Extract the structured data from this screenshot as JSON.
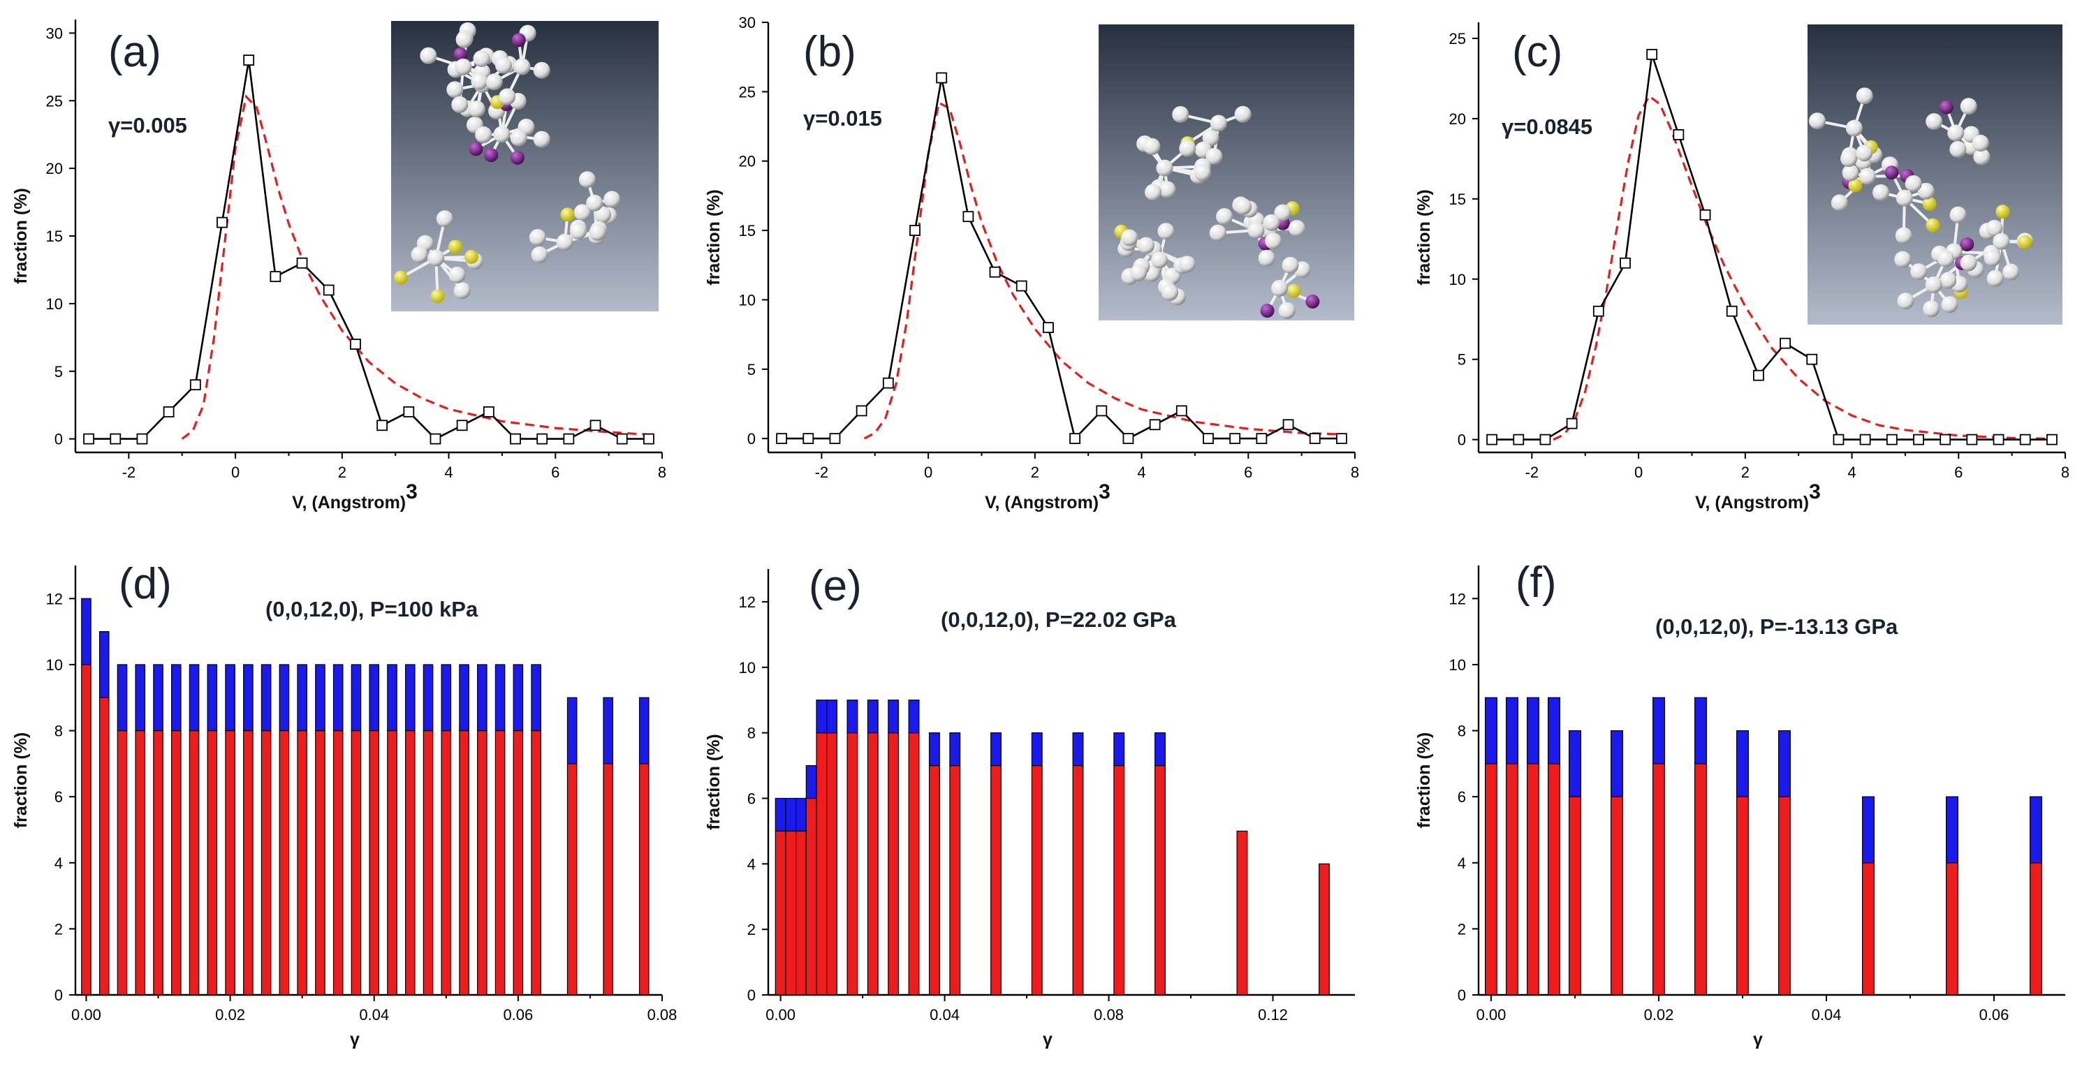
{
  "figure": {
    "panels": [
      {
        "label": "(a)",
        "annotation": "γ=0.005"
      },
      {
        "label": "(b)",
        "annotation": "γ=0.015"
      },
      {
        "label": "(c)",
        "annotation": "γ=0.0845"
      },
      {
        "label": "(d)",
        "annotation": "(0,0,12,0),  P=100 kPa"
      },
      {
        "label": "(e)",
        "annotation": "(0,0,12,0),  P=22.02 GPa"
      },
      {
        "label": "(f)",
        "annotation": "(0,0,12,0),  P=-13.13 GPa"
      }
    ],
    "colors": {
      "data_line": "#000000",
      "fit_line": "#e0201c",
      "bar_red": "#ee1c1c",
      "bar_blue": "#1a1aee",
      "inset_top": "#2a3446",
      "inset_bottom": "#aeb6c6",
      "atom_white": "#f2f2f2",
      "atom_purple": "#7a1f8c",
      "atom_yellow": "#e8e020"
    }
  },
  "chart_data": [
    {
      "type": "line",
      "id": "a",
      "title": "(a)",
      "annotation": "γ=0.005",
      "xlabel": "V,  (Angstrom)",
      "xlabel_sup": "3",
      "ylabel": "fraction (%)",
      "xlim": [
        -3,
        8
      ],
      "ylim": [
        -1,
        31
      ],
      "xticks": [
        -2,
        0,
        2,
        4,
        6,
        8
      ],
      "yticks": [
        0,
        5,
        10,
        15,
        20,
        25,
        30
      ],
      "series": [
        {
          "name": "data",
          "style": "line-markers",
          "x": [
            -2.75,
            -2.25,
            -1.75,
            -1.25,
            -0.75,
            -0.25,
            0.25,
            0.75,
            1.25,
            1.75,
            2.25,
            2.75,
            3.25,
            3.75,
            4.25,
            4.75,
            5.25,
            5.75,
            6.25,
            6.75,
            7.25,
            7.75
          ],
          "y": [
            0,
            0,
            0,
            2,
            4,
            16,
            28,
            12,
            13,
            11,
            7,
            1,
            2,
            0,
            1,
            2,
            0,
            0,
            0,
            1,
            0,
            0
          ]
        },
        {
          "name": "fit",
          "style": "dashed",
          "x": [
            -1.0,
            -0.8,
            -0.6,
            -0.4,
            -0.2,
            0.0,
            0.2,
            0.4,
            0.6,
            0.8,
            1.0,
            1.3,
            1.6,
            2.0,
            2.5,
            3.0,
            3.5,
            4.0,
            5.0,
            6.0,
            7.0,
            7.8
          ],
          "y": [
            0,
            0.6,
            2.5,
            7.5,
            14.5,
            21.5,
            25.3,
            24.5,
            21.6,
            18.5,
            15.9,
            12.8,
            10.5,
            8.0,
            5.7,
            4.1,
            3.0,
            2.2,
            1.3,
            0.8,
            0.5,
            0.3
          ]
        }
      ]
    },
    {
      "type": "line",
      "id": "b",
      "title": "(b)",
      "annotation": "γ=0.015",
      "xlabel": "V,  (Angstrom)",
      "xlabel_sup": "3",
      "ylabel": "fraction (%)",
      "xlim": [
        -3,
        8
      ],
      "ylim": [
        -1,
        30
      ],
      "xticks": [
        -2,
        0,
        2,
        4,
        6,
        8
      ],
      "yticks": [
        0,
        5,
        10,
        15,
        20,
        25,
        30
      ],
      "series": [
        {
          "name": "data",
          "style": "line-markers",
          "x": [
            -2.75,
            -2.25,
            -1.75,
            -1.25,
            -0.75,
            -0.25,
            0.25,
            0.75,
            1.25,
            1.75,
            2.25,
            2.75,
            3.25,
            3.75,
            4.25,
            4.75,
            5.25,
            5.75,
            6.25,
            6.75,
            7.25,
            7.75
          ],
          "y": [
            0,
            0,
            0,
            2,
            4,
            15,
            26,
            16,
            12,
            11,
            8,
            0,
            2,
            0,
            1,
            2,
            0,
            0,
            0,
            1,
            0,
            0
          ]
        },
        {
          "name": "fit",
          "style": "dashed",
          "x": [
            -1.2,
            -1.0,
            -0.8,
            -0.6,
            -0.4,
            -0.2,
            0.0,
            0.2,
            0.4,
            0.6,
            0.8,
            1.0,
            1.3,
            1.6,
            2.0,
            2.5,
            3.0,
            3.5,
            4.0,
            5.0,
            6.0,
            7.0,
            7.8
          ],
          "y": [
            0,
            0.4,
            1.5,
            4.0,
            8.5,
            14.5,
            20.5,
            24.2,
            23.8,
            21.2,
            18.2,
            15.6,
            12.6,
            10.3,
            7.9,
            5.6,
            4.0,
            2.9,
            2.1,
            1.2,
            0.7,
            0.4,
            0.3
          ]
        }
      ]
    },
    {
      "type": "line",
      "id": "c",
      "title": "(c)",
      "annotation": "γ=0.0845",
      "xlabel": "V,  (Angstrom)",
      "xlabel_sup": "3",
      "ylabel": "fraction (%)",
      "xlim": [
        -3,
        8
      ],
      "ylim": [
        -0.8,
        26
      ],
      "xticks": [
        -2,
        0,
        2,
        4,
        6,
        8
      ],
      "yticks": [
        0,
        5,
        10,
        15,
        20,
        25
      ],
      "series": [
        {
          "name": "data",
          "style": "line-markers",
          "x": [
            -2.75,
            -2.25,
            -1.75,
            -1.25,
            -0.75,
            -0.25,
            0.25,
            0.75,
            1.25,
            1.75,
            2.25,
            2.75,
            3.25,
            3.75,
            4.25,
            4.75,
            5.25,
            5.75,
            6.25,
            6.75,
            7.25,
            7.75
          ],
          "y": [
            0,
            0,
            0,
            1,
            8,
            11,
            24,
            19,
            14,
            8,
            4,
            6,
            5,
            0,
            0,
            0,
            0,
            0,
            0,
            0,
            0,
            0
          ]
        },
        {
          "name": "fit",
          "style": "dashed",
          "x": [
            -1.6,
            -1.4,
            -1.2,
            -1.0,
            -0.8,
            -0.6,
            -0.4,
            -0.2,
            0.0,
            0.2,
            0.4,
            0.6,
            0.8,
            1.0,
            1.3,
            1.6,
            2.0,
            2.5,
            3.0,
            3.5,
            4.0,
            4.5,
            5.0,
            6.0,
            7.0,
            7.8
          ],
          "y": [
            0,
            0.3,
            1.2,
            3.0,
            5.8,
            9.3,
            13.3,
            17.2,
            20.2,
            21.4,
            20.9,
            19.4,
            17.6,
            15.8,
            13.2,
            10.9,
            8.3,
            5.7,
            3.8,
            2.4,
            1.5,
            0.9,
            0.6,
            0.25,
            0.1,
            0.05
          ]
        }
      ]
    },
    {
      "type": "bar",
      "id": "d",
      "title": "(d)",
      "annotation": "(0,0,12,0),  P=100 kPa",
      "xlabel": "γ",
      "ylabel": "fraction (%)",
      "stacked": true,
      "xlim": [
        -0.0015,
        0.08
      ],
      "ylim": [
        0,
        13
      ],
      "xticks": [
        0.0,
        0.02,
        0.04,
        0.06,
        0.08
      ],
      "xtick_labels": [
        "0.00",
        "0.02",
        "0.04",
        "0.06",
        "0.08"
      ],
      "yticks": [
        0,
        2,
        4,
        6,
        8,
        10,
        12
      ],
      "bar_width": 0.0013,
      "x": [
        0.0,
        0.0025,
        0.005,
        0.0075,
        0.01,
        0.0125,
        0.015,
        0.0175,
        0.02,
        0.0225,
        0.025,
        0.0275,
        0.03,
        0.0325,
        0.035,
        0.0375,
        0.04,
        0.0425,
        0.045,
        0.0475,
        0.05,
        0.0525,
        0.055,
        0.0575,
        0.06,
        0.0625,
        0.0675,
        0.0725,
        0.0775
      ],
      "series": [
        {
          "name": "red",
          "color": "#ee1c1c",
          "values": [
            10,
            9,
            8,
            8,
            8,
            8,
            8,
            8,
            8,
            8,
            8,
            8,
            8,
            8,
            8,
            8,
            8,
            8,
            8,
            8,
            8,
            8,
            8,
            8,
            8,
            8,
            7,
            7,
            7
          ]
        },
        {
          "name": "blue",
          "color": "#1a1aee",
          "values": [
            2,
            2,
            2,
            2,
            2,
            2,
            2,
            2,
            2,
            2,
            2,
            2,
            2,
            2,
            2,
            2,
            2,
            2,
            2,
            2,
            2,
            2,
            2,
            2,
            2,
            2,
            2,
            2,
            2
          ]
        }
      ]
    },
    {
      "type": "bar",
      "id": "e",
      "title": "(e)",
      "annotation": "(0,0,12,0),  P=22.02 GPa",
      "xlabel": "γ",
      "ylabel": "fraction (%)",
      "stacked": true,
      "xlim": [
        -0.003,
        0.14
      ],
      "ylim": [
        0,
        13
      ],
      "xticks": [
        0.0,
        0.04,
        0.08,
        0.12
      ],
      "xtick_labels": [
        "0.00",
        "0.04",
        "0.08",
        "0.12"
      ],
      "yticks": [
        0,
        2,
        4,
        6,
        8,
        10,
        12
      ],
      "bar_width": 0.0025,
      "x": [
        0.0,
        0.0025,
        0.005,
        0.0075,
        0.01,
        0.0125,
        0.0175,
        0.0225,
        0.0275,
        0.0325,
        0.0375,
        0.0425,
        0.0525,
        0.0625,
        0.0725,
        0.0825,
        0.0925,
        0.1125,
        0.1325
      ],
      "series": [
        {
          "name": "red",
          "color": "#ee1c1c",
          "values": [
            5,
            5,
            5,
            6,
            8,
            8,
            8,
            8,
            8,
            8,
            7,
            7,
            7,
            7,
            7,
            7,
            7,
            5,
            4
          ]
        },
        {
          "name": "blue",
          "color": "#1a1aee",
          "values": [
            1,
            1,
            1,
            1,
            1,
            1,
            1,
            1,
            1,
            1,
            1,
            1,
            1,
            1,
            1,
            1,
            1,
            0,
            0
          ]
        }
      ]
    },
    {
      "type": "bar",
      "id": "f",
      "title": "(f)",
      "annotation": "(0,0,12,0),  P=-13.13 GPa",
      "xlabel": "γ",
      "ylabel": "fraction (%)",
      "stacked": true,
      "xlim": [
        -0.0015,
        0.0685
      ],
      "ylim": [
        0,
        13
      ],
      "xticks": [
        0.0,
        0.02,
        0.04,
        0.06
      ],
      "xtick_labels": [
        "0.00",
        "0.02",
        "0.04",
        "0.06"
      ],
      "yticks": [
        0,
        2,
        4,
        6,
        8,
        10,
        12
      ],
      "bar_width": 0.0014,
      "x": [
        0.0,
        0.0025,
        0.005,
        0.0075,
        0.01,
        0.015,
        0.02,
        0.025,
        0.03,
        0.035,
        0.045,
        0.055,
        0.065
      ],
      "series": [
        {
          "name": "red",
          "color": "#ee1c1c",
          "values": [
            7,
            7,
            7,
            7,
            6,
            6,
            7,
            7,
            6,
            6,
            4,
            4,
            4
          ]
        },
        {
          "name": "blue",
          "color": "#1a1aee",
          "values": [
            2,
            2,
            2,
            2,
            2,
            2,
            2,
            2,
            2,
            2,
            2,
            2,
            2
          ]
        }
      ]
    }
  ]
}
